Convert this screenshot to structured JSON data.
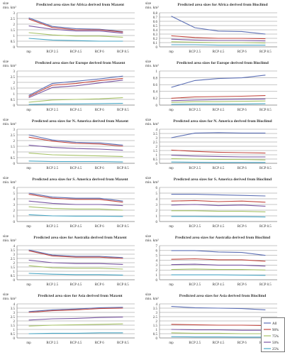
{
  "colors": {
    "all": "#5c6fb5",
    "p90": "#c2473f",
    "p75": "#a6c266",
    "p50": "#7a57a3",
    "p25": "#48a6c4",
    "grid": "#8c8c8c",
    "axis": "#6d6d6d"
  },
  "legend": {
    "entries": [
      "All",
      "90%",
      "75%",
      "50%",
      "25%"
    ]
  },
  "chart_data": [
    {
      "type": "line",
      "title": "Predicted area sizes for Africa derived from Maxent",
      "ylabel": "size mio. km²",
      "categories": [
        "mp",
        "RCP 2.5",
        "RCP 4.5",
        "RCP 6",
        "RCP 8.5"
      ],
      "ylim": [
        0,
        3
      ],
      "yticks": [
        "0",
        "0.5",
        "1",
        "1.5",
        "2",
        "2.5",
        "3"
      ],
      "series": [
        {
          "name": "All",
          "values": [
            2.55,
            1.8,
            1.6,
            1.55,
            1.35
          ]
        },
        {
          "name": "90%",
          "values": [
            2.45,
            1.7,
            1.5,
            1.5,
            1.3
          ]
        },
        {
          "name": "75%",
          "values": [
            1.25,
            1.05,
            0.95,
            0.95,
            0.85
          ]
        },
        {
          "name": "50%",
          "values": [
            1.85,
            1.55,
            1.4,
            1.4,
            1.2
          ]
        },
        {
          "name": "25%",
          "values": [
            0.75,
            0.6,
            0.55,
            0.5,
            0.5
          ]
        }
      ]
    },
    {
      "type": "line",
      "title": "Predicted area sizes for Africa derived from Bioclimd",
      "ylabel": "size mio. km²",
      "categories": [
        "mp",
        "RCP 2.5",
        "RCP 4.5",
        "RCP 6",
        "RCP 8.5"
      ],
      "ylim": [
        0,
        0.8
      ],
      "yticks": [
        "0",
        "0.1",
        "0.2",
        "0.3",
        "0.4",
        "0.5",
        "0.6",
        "0.7",
        "0.8"
      ],
      "series": [
        {
          "name": "All",
          "values": [
            0.72,
            0.45,
            0.37,
            0.36,
            0.3
          ]
        },
        {
          "name": "90%",
          "values": [
            0.26,
            0.22,
            0.2,
            0.2,
            0.19
          ]
        },
        {
          "name": "75%",
          "values": [
            0.12,
            0.11,
            0.1,
            0.1,
            0.09
          ]
        },
        {
          "name": "50%",
          "values": [
            0.18,
            0.16,
            0.15,
            0.15,
            0.14
          ]
        },
        {
          "name": "25%",
          "values": [
            0.05,
            0.05,
            0.04,
            0.04,
            0.04
          ]
        }
      ]
    },
    {
      "type": "line",
      "title": "Predicted area sizes for Europe derived from Maxent",
      "ylabel": "size mio. km²",
      "categories": [
        "mp",
        "RCP 2.5",
        "RCP 4.5",
        "RCP 6",
        "RCP 8.5"
      ],
      "ylim": [
        0,
        3
      ],
      "yticks": [
        "0",
        "0.5",
        "1",
        "1.5",
        "2",
        "2.5",
        "3"
      ],
      "series": [
        {
          "name": "All",
          "values": [
            0.85,
            1.9,
            2.1,
            2.3,
            2.55
          ]
        },
        {
          "name": "90%",
          "values": [
            0.75,
            1.75,
            1.9,
            2.15,
            2.35
          ]
        },
        {
          "name": "75%",
          "values": [
            0.25,
            0.45,
            0.5,
            0.55,
            0.65
          ]
        },
        {
          "name": "50%",
          "values": [
            0.65,
            1.55,
            1.7,
            1.95,
            2.2
          ]
        },
        {
          "name": "25%",
          "values": [
            0.05,
            0.1,
            0.1,
            0.12,
            0.15
          ]
        }
      ]
    },
    {
      "type": "line",
      "title": "Predicted area sizes for Europe derived from Bioclimd",
      "ylabel": "size mio. km²",
      "categories": [
        "mp",
        "RCP 2.5",
        "RCP 4.5",
        "RCP 6",
        "RCP 8.5"
      ],
      "ylim": [
        0,
        1
      ],
      "yticks": [
        "0",
        "0.2",
        "0.4",
        "0.6",
        "0.8",
        "1"
      ],
      "series": [
        {
          "name": "All",
          "values": [
            0.52,
            0.72,
            0.78,
            0.8,
            0.88
          ]
        },
        {
          "name": "90%",
          "values": [
            0.2,
            0.24,
            0.25,
            0.26,
            0.28
          ]
        },
        {
          "name": "75%",
          "values": [
            0.08,
            0.1,
            0.1,
            0.11,
            0.12
          ]
        },
        {
          "name": "50%",
          "values": [
            0.13,
            0.15,
            0.16,
            0.17,
            0.18
          ]
        },
        {
          "name": "25%",
          "values": [
            0.02,
            0.03,
            0.03,
            0.03,
            0.04
          ]
        }
      ]
    },
    {
      "type": "line",
      "title": "Predicted area sizes for N. America derived from Maxent",
      "ylabel": "size mio. km²",
      "categories": [
        "mp",
        "RCP 2.5",
        "RCP 4.5",
        "RCP 6",
        "RCP 8.5"
      ],
      "ylim": [
        0,
        3
      ],
      "yticks": [
        "0",
        "0.5",
        "1",
        "1.5",
        "2",
        "2.5",
        "3"
      ],
      "series": [
        {
          "name": "All",
          "values": [
            2.5,
            2.05,
            1.85,
            1.8,
            1.6
          ]
        },
        {
          "name": "90%",
          "values": [
            2.3,
            1.95,
            1.75,
            1.7,
            1.5
          ]
        },
        {
          "name": "75%",
          "values": [
            0.9,
            0.75,
            0.7,
            0.65,
            0.6
          ]
        },
        {
          "name": "50%",
          "values": [
            1.6,
            1.4,
            1.3,
            1.25,
            1.15
          ]
        },
        {
          "name": "25%",
          "values": [
            0.2,
            0.15,
            0.15,
            0.15,
            0.12
          ]
        }
      ]
    },
    {
      "type": "line",
      "title": "Predicted area sizes for N. America derived from Bioclimd",
      "ylabel": "size mio. km²",
      "categories": [
        "mp",
        "RCP 2.5",
        "RCP 4.5",
        "RCP 6",
        "RCP 8.5"
      ],
      "ylim": [
        0,
        4
      ],
      "yticks": [
        "0",
        "0.5",
        "1",
        "1.5",
        "2",
        "2.5",
        "3",
        "3.5",
        "4"
      ],
      "series": [
        {
          "name": "All",
          "values": [
            3.0,
            3.55,
            3.6,
            3.55,
            3.55
          ]
        },
        {
          "name": "90%",
          "values": [
            1.55,
            1.4,
            1.3,
            1.25,
            1.2
          ]
        },
        {
          "name": "75%",
          "values": [
            0.55,
            0.5,
            0.45,
            0.45,
            0.4
          ]
        },
        {
          "name": "50%",
          "values": [
            0.95,
            0.85,
            0.8,
            0.75,
            0.75
          ]
        },
        {
          "name": "25%",
          "values": [
            0.15,
            0.12,
            0.1,
            0.1,
            0.1
          ]
        }
      ]
    },
    {
      "type": "line",
      "title": "Predicted area sizes for S. America derived from Maxent",
      "ylabel": "size mio. km²",
      "categories": [
        "mp",
        "RCP 2.5",
        "RCP 4.5",
        "RCP 6",
        "RCP 8.5"
      ],
      "ylim": [
        0,
        6
      ],
      "yticks": [
        "0",
        "1",
        "2",
        "3",
        "4",
        "5",
        "6"
      ],
      "series": [
        {
          "name": "All",
          "values": [
            5.0,
            4.3,
            4.1,
            4.1,
            3.6
          ]
        },
        {
          "name": "90%",
          "values": [
            4.8,
            4.1,
            3.9,
            3.9,
            3.4
          ]
        },
        {
          "name": "75%",
          "values": [
            2.6,
            2.3,
            2.2,
            2.2,
            2.0
          ]
        },
        {
          "name": "50%",
          "values": [
            3.6,
            3.2,
            3.0,
            3.0,
            2.8
          ]
        },
        {
          "name": "25%",
          "values": [
            1.2,
            1.0,
            0.95,
            0.95,
            0.9
          ]
        }
      ]
    },
    {
      "type": "line",
      "title": "Predicted area sizes for S. America derived from Bioclimd",
      "ylabel": "size mio. km²",
      "categories": [
        "mp",
        "RCP 2.5",
        "RCP 4.5",
        "RCP 6",
        "RCP 8.5"
      ],
      "ylim": [
        0,
        6
      ],
      "yticks": [
        "0",
        "1",
        "2",
        "3",
        "4",
        "5",
        "6"
      ],
      "series": [
        {
          "name": "All",
          "values": [
            4.8,
            4.8,
            4.7,
            4.6,
            4.5
          ]
        },
        {
          "name": "90%",
          "values": [
            3.6,
            3.7,
            3.5,
            3.6,
            3.4
          ]
        },
        {
          "name": "75%",
          "values": [
            1.9,
            1.9,
            1.8,
            1.8,
            1.7
          ]
        },
        {
          "name": "50%",
          "values": [
            2.9,
            3.0,
            2.8,
            2.9,
            2.7
          ]
        },
        {
          "name": "25%",
          "values": [
            0.9,
            0.9,
            0.85,
            0.85,
            0.8
          ]
        }
      ]
    },
    {
      "type": "line",
      "title": "Predicted area sizes for Australia derived from Maxent",
      "ylabel": "size mio. km²",
      "categories": [
        "mp",
        "RCP 2.5",
        "RCP 4.5",
        "RCP 6",
        "RCP 8.5"
      ],
      "ylim": [
        0,
        4
      ],
      "yticks": [
        "0",
        "0.5",
        "1",
        "1.5",
        "2",
        "2.5",
        "3",
        "3.5",
        "4"
      ],
      "series": [
        {
          "name": "All",
          "values": [
            3.5,
            2.9,
            2.75,
            2.75,
            2.6
          ]
        },
        {
          "name": "90%",
          "values": [
            3.4,
            2.8,
            2.65,
            2.65,
            2.5
          ]
        },
        {
          "name": "75%",
          "values": [
            1.65,
            1.4,
            1.35,
            1.35,
            1.25
          ]
        },
        {
          "name": "50%",
          "values": [
            2.3,
            2.0,
            1.9,
            1.9,
            1.8
          ]
        },
        {
          "name": "25%",
          "values": [
            0.75,
            0.65,
            0.6,
            0.6,
            0.55
          ]
        }
      ]
    },
    {
      "type": "line",
      "title": "Predicted area sizes for Australia derived from Bioclimd",
      "ylabel": "size mio. km²",
      "categories": [
        "mp",
        "RCP 2.5",
        "RCP 4.5",
        "RCP 6",
        "RCP 8.5"
      ],
      "ylim": [
        0,
        7
      ],
      "yticks": [
        "0",
        "1",
        "2",
        "3",
        "4",
        "5",
        "6",
        "7"
      ],
      "series": [
        {
          "name": "All",
          "values": [
            6.0,
            6.0,
            5.7,
            5.6,
            5.0
          ]
        },
        {
          "name": "90%",
          "values": [
            4.2,
            4.3,
            4.1,
            4.1,
            3.8
          ]
        },
        {
          "name": "75%",
          "values": [
            2.1,
            2.2,
            2.1,
            2.1,
            2.0
          ]
        },
        {
          "name": "50%",
          "values": [
            3.1,
            3.2,
            3.0,
            3.0,
            2.8
          ]
        },
        {
          "name": "25%",
          "values": [
            1.0,
            1.0,
            1.0,
            0.95,
            0.9
          ]
        }
      ]
    },
    {
      "type": "line",
      "title": "Predicted area sizes for Asia derived from Maxent",
      "ylabel": "size mio. km²",
      "categories": [
        "mp",
        "RCP 2.5",
        "RCP 4.5",
        "RCP 6",
        "RCP 8.5"
      ],
      "ylim": [
        0,
        4
      ],
      "yticks": [
        "0",
        "0.5",
        "1",
        "1.5",
        "2",
        "2.5",
        "3",
        "3.5",
        "4"
      ],
      "series": [
        {
          "name": "All",
          "values": [
            3.1,
            3.3,
            3.4,
            3.55,
            3.6
          ]
        },
        {
          "name": "90%",
          "values": [
            3.0,
            3.2,
            3.3,
            3.45,
            3.5
          ]
        },
        {
          "name": "75%",
          "values": [
            1.4,
            1.5,
            1.55,
            1.6,
            1.65
          ]
        },
        {
          "name": "50%",
          "values": [
            2.1,
            2.25,
            2.3,
            2.4,
            2.45
          ]
        },
        {
          "name": "25%",
          "values": [
            0.5,
            0.55,
            0.55,
            0.6,
            0.6
          ]
        }
      ]
    },
    {
      "type": "line",
      "title": "Predicted area sizes for Asia derived from Bioclimd",
      "ylabel": "size mio. km²",
      "categories": [
        "mp",
        "RCP 2.5",
        "RCP 4.5",
        "RCP 6",
        "RCP 8.5"
      ],
      "ylim": [
        0,
        4
      ],
      "yticks": [
        "0",
        "0.5",
        "1",
        "1.5",
        "2",
        "2.5",
        "3",
        "3.5",
        "4"
      ],
      "series": [
        {
          "name": "All",
          "values": [
            3.7,
            3.55,
            3.5,
            3.45,
            3.3
          ]
        },
        {
          "name": "90%",
          "values": [
            1.6,
            1.55,
            1.5,
            1.5,
            1.45
          ]
        },
        {
          "name": "75%",
          "values": [
            0.6,
            0.55,
            0.55,
            0.5,
            0.5
          ]
        },
        {
          "name": "50%",
          "values": [
            1.0,
            0.95,
            0.95,
            0.9,
            0.9
          ]
        },
        {
          "name": "25%",
          "values": [
            0.15,
            0.12,
            0.12,
            0.1,
            0.1
          ]
        }
      ]
    }
  ]
}
